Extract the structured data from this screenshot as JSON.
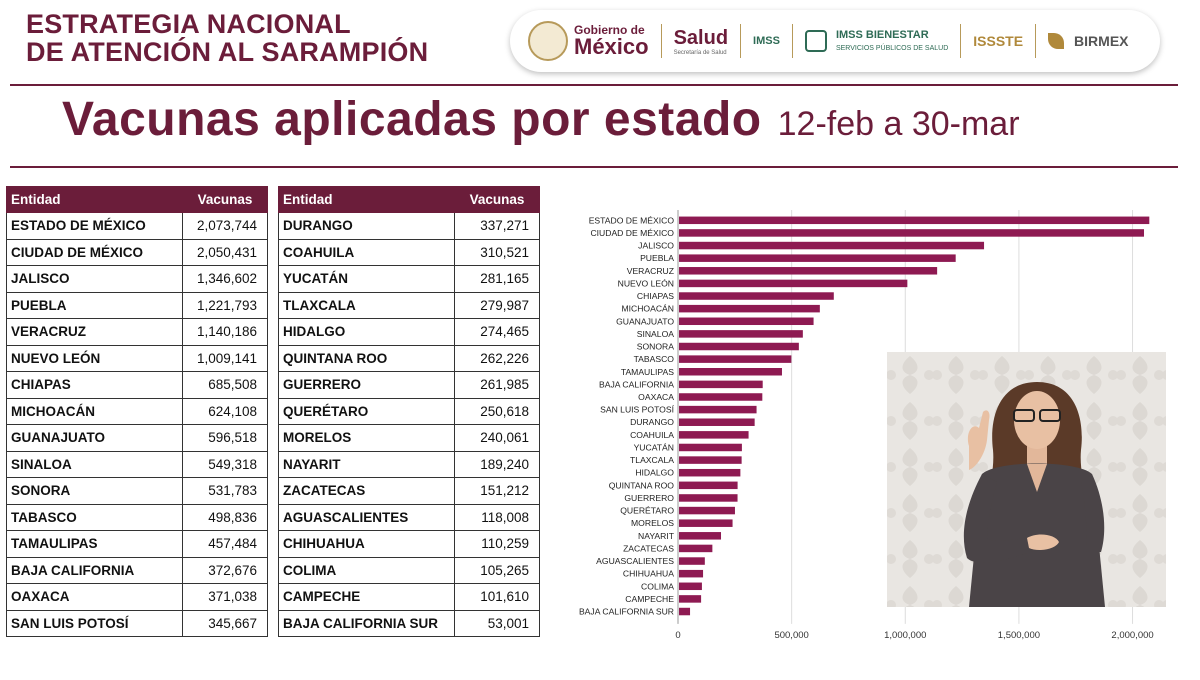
{
  "header": {
    "title_line1": "ESTRATEGIA NACIONAL",
    "title_line2": "DE ATENCIÓN AL SARAMPIÓN"
  },
  "logos": {
    "gob_top": "Gobierno de",
    "gob_bottom": "México",
    "salud": "Salud",
    "salud_sub": "Secretaría de Salud",
    "imss": "IMSS",
    "imss_bienestar": "IMSS BIENESTAR",
    "imss_bienestar_sub": "SERVICIOS PÚBLICOS DE SALUD",
    "issste": "ISSSTE",
    "birmex": "BIRMEX"
  },
  "title": {
    "main": "Vacunas aplicadas por estado",
    "range": "12-feb a 30-mar"
  },
  "table_headers": {
    "entity": "Entidad",
    "vaccines": "Vacunas"
  },
  "table_left": [
    {
      "entity": "ESTADO DE MÉXICO",
      "value": "2,073,744"
    },
    {
      "entity": "CIUDAD DE MÉXICO",
      "value": "2,050,431"
    },
    {
      "entity": "JALISCO",
      "value": "1,346,602"
    },
    {
      "entity": "PUEBLA",
      "value": "1,221,793"
    },
    {
      "entity": "VERACRUZ",
      "value": "1,140,186"
    },
    {
      "entity": "NUEVO LEÓN",
      "value": "1,009,141"
    },
    {
      "entity": "CHIAPAS",
      "value": "685,508"
    },
    {
      "entity": "MICHOACÁN",
      "value": "624,108"
    },
    {
      "entity": "GUANAJUATO",
      "value": "596,518"
    },
    {
      "entity": "SINALOA",
      "value": "549,318"
    },
    {
      "entity": "SONORA",
      "value": "531,783"
    },
    {
      "entity": "TABASCO",
      "value": "498,836"
    },
    {
      "entity": "TAMAULIPAS",
      "value": "457,484"
    },
    {
      "entity": "BAJA CALIFORNIA",
      "value": "372,676"
    },
    {
      "entity": "OAXACA",
      "value": "371,038"
    },
    {
      "entity": "SAN LUIS POTOSÍ",
      "value": "345,667"
    }
  ],
  "table_right": [
    {
      "entity": "DURANGO",
      "value": "337,271"
    },
    {
      "entity": "COAHUILA",
      "value": "310,521"
    },
    {
      "entity": "YUCATÁN",
      "value": "281,165"
    },
    {
      "entity": "TLAXCALA",
      "value": "279,987"
    },
    {
      "entity": "HIDALGO",
      "value": "274,465"
    },
    {
      "entity": "QUINTANA ROO",
      "value": "262,226"
    },
    {
      "entity": "GUERRERO",
      "value": "261,985"
    },
    {
      "entity": "QUERÉTARO",
      "value": "250,618"
    },
    {
      "entity": "MORELOS",
      "value": "240,061"
    },
    {
      "entity": "NAYARIT",
      "value": "189,240"
    },
    {
      "entity": "ZACATECAS",
      "value": "151,212"
    },
    {
      "entity": "AGUASCALIENTES",
      "value": "118,008"
    },
    {
      "entity": "CHIHUAHUA",
      "value": "110,259"
    },
    {
      "entity": "COLIMA",
      "value": "105,265"
    },
    {
      "entity": "CAMPECHE",
      "value": "101,610"
    },
    {
      "entity": "BAJA CALIFORNIA SUR",
      "value": "53,001"
    }
  ],
  "colors": {
    "brand": "#6b1d3a",
    "bar": "#8e1a52",
    "grid": "#dddddd"
  },
  "chart_data": {
    "type": "bar",
    "orientation": "horizontal",
    "title": "",
    "xlabel": "",
    "ylabel": "",
    "xlim": [
      0,
      2200000
    ],
    "xticks": [
      0,
      500000,
      1000000,
      1500000,
      2000000
    ],
    "xtick_labels": [
      "0",
      "500,000",
      "1,000,000",
      "1,500,000",
      "2,000,000"
    ],
    "grid": true,
    "categories": [
      "ESTADO DE MÉXICO",
      "CIUDAD DE MÉXICO",
      "JALISCO",
      "PUEBLA",
      "VERACRUZ",
      "NUEVO LEÓN",
      "CHIAPAS",
      "MICHOACÁN",
      "GUANAJUATO",
      "SINALOA",
      "SONORA",
      "TABASCO",
      "TAMAULIPAS",
      "BAJA CALIFORNIA",
      "OAXACA",
      "SAN LUIS POTOSÍ",
      "DURANGO",
      "COAHUILA",
      "YUCATÁN",
      "TLAXCALA",
      "HIDALGO",
      "QUINTANA ROO",
      "GUERRERO",
      "QUERÉTARO",
      "MORELOS",
      "NAYARIT",
      "ZACATECAS",
      "AGUASCALIENTES",
      "CHIHUAHUA",
      "COLIMA",
      "CAMPECHE",
      "BAJA CALIFORNIA SUR"
    ],
    "values": [
      2073744,
      2050431,
      1346602,
      1221793,
      1140186,
      1009141,
      685508,
      624108,
      596518,
      549318,
      531783,
      498836,
      457484,
      372676,
      371038,
      345667,
      337271,
      310521,
      281165,
      279987,
      274465,
      262226,
      261985,
      250618,
      240061,
      189240,
      151212,
      118008,
      110259,
      105265,
      101610,
      53001
    ]
  }
}
